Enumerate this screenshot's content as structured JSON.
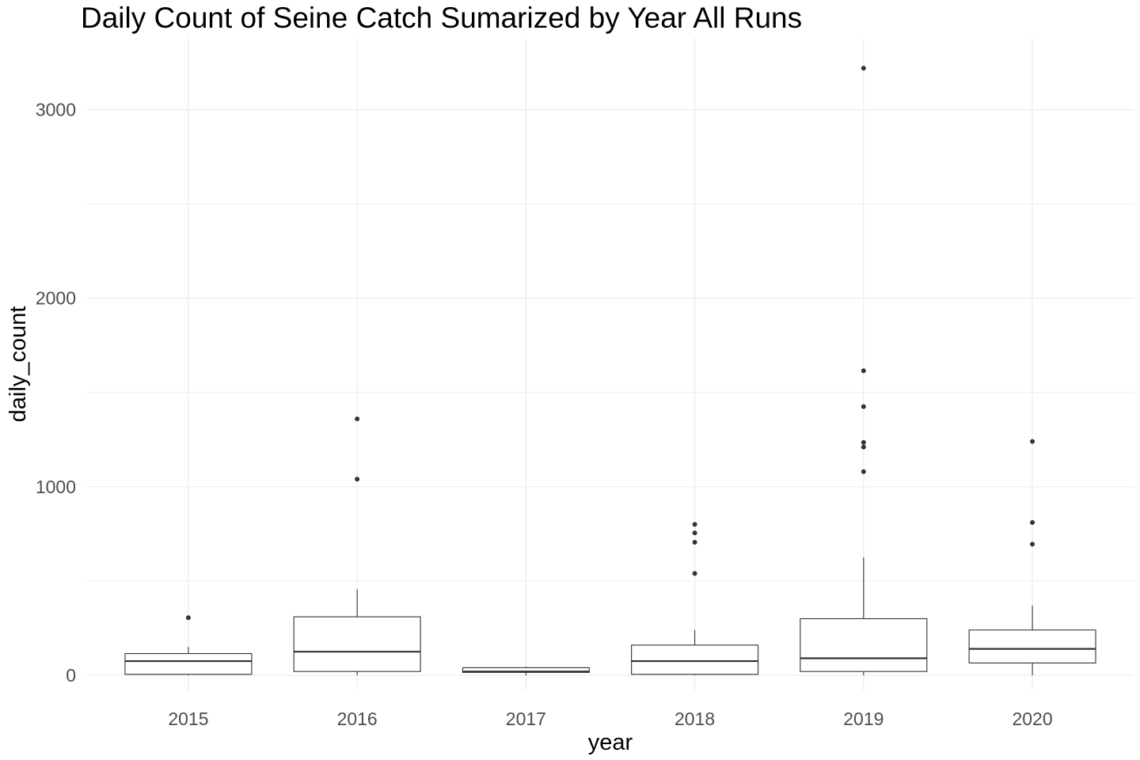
{
  "chart_data": {
    "type": "boxplot",
    "title": "Daily Count of Seine Catch Sumarized by Year All Runs",
    "xlabel": "year",
    "ylabel": "daily_count",
    "ylim": [
      -80,
      3380
    ],
    "yticks": [
      0,
      1000,
      2000,
      3000
    ],
    "grid": true,
    "categories": [
      "2015",
      "2016",
      "2017",
      "2018",
      "2019",
      "2020"
    ],
    "boxes": [
      {
        "year": "2015",
        "whisker_low": 0,
        "q1": 5,
        "median": 75,
        "q3": 115,
        "whisker_high": 150,
        "outliers": [
          305
        ]
      },
      {
        "year": "2016",
        "whisker_low": 0,
        "q1": 20,
        "median": 125,
        "q3": 310,
        "whisker_high": 455,
        "outliers": [
          1040,
          1360
        ]
      },
      {
        "year": "2017",
        "whisker_low": 0,
        "q1": 15,
        "median": 20,
        "q3": 40,
        "whisker_high": 45,
        "outliers": []
      },
      {
        "year": "2018",
        "whisker_low": 0,
        "q1": 5,
        "median": 75,
        "q3": 160,
        "whisker_high": 240,
        "outliers": [
          540,
          705,
          755,
          800
        ]
      },
      {
        "year": "2019",
        "whisker_low": 0,
        "q1": 20,
        "median": 90,
        "q3": 300,
        "whisker_high": 625,
        "outliers": [
          1080,
          1210,
          1235,
          1425,
          1615,
          3220
        ]
      },
      {
        "year": "2020",
        "whisker_low": 0,
        "q1": 65,
        "median": 140,
        "q3": 240,
        "whisker_high": 370,
        "outliers": [
          695,
          810,
          1240
        ]
      }
    ],
    "colors": {
      "box_stroke": "#333333",
      "grid": "#ebebeb",
      "tick_text": "#4d4d4d",
      "outlier": "#333333"
    }
  }
}
